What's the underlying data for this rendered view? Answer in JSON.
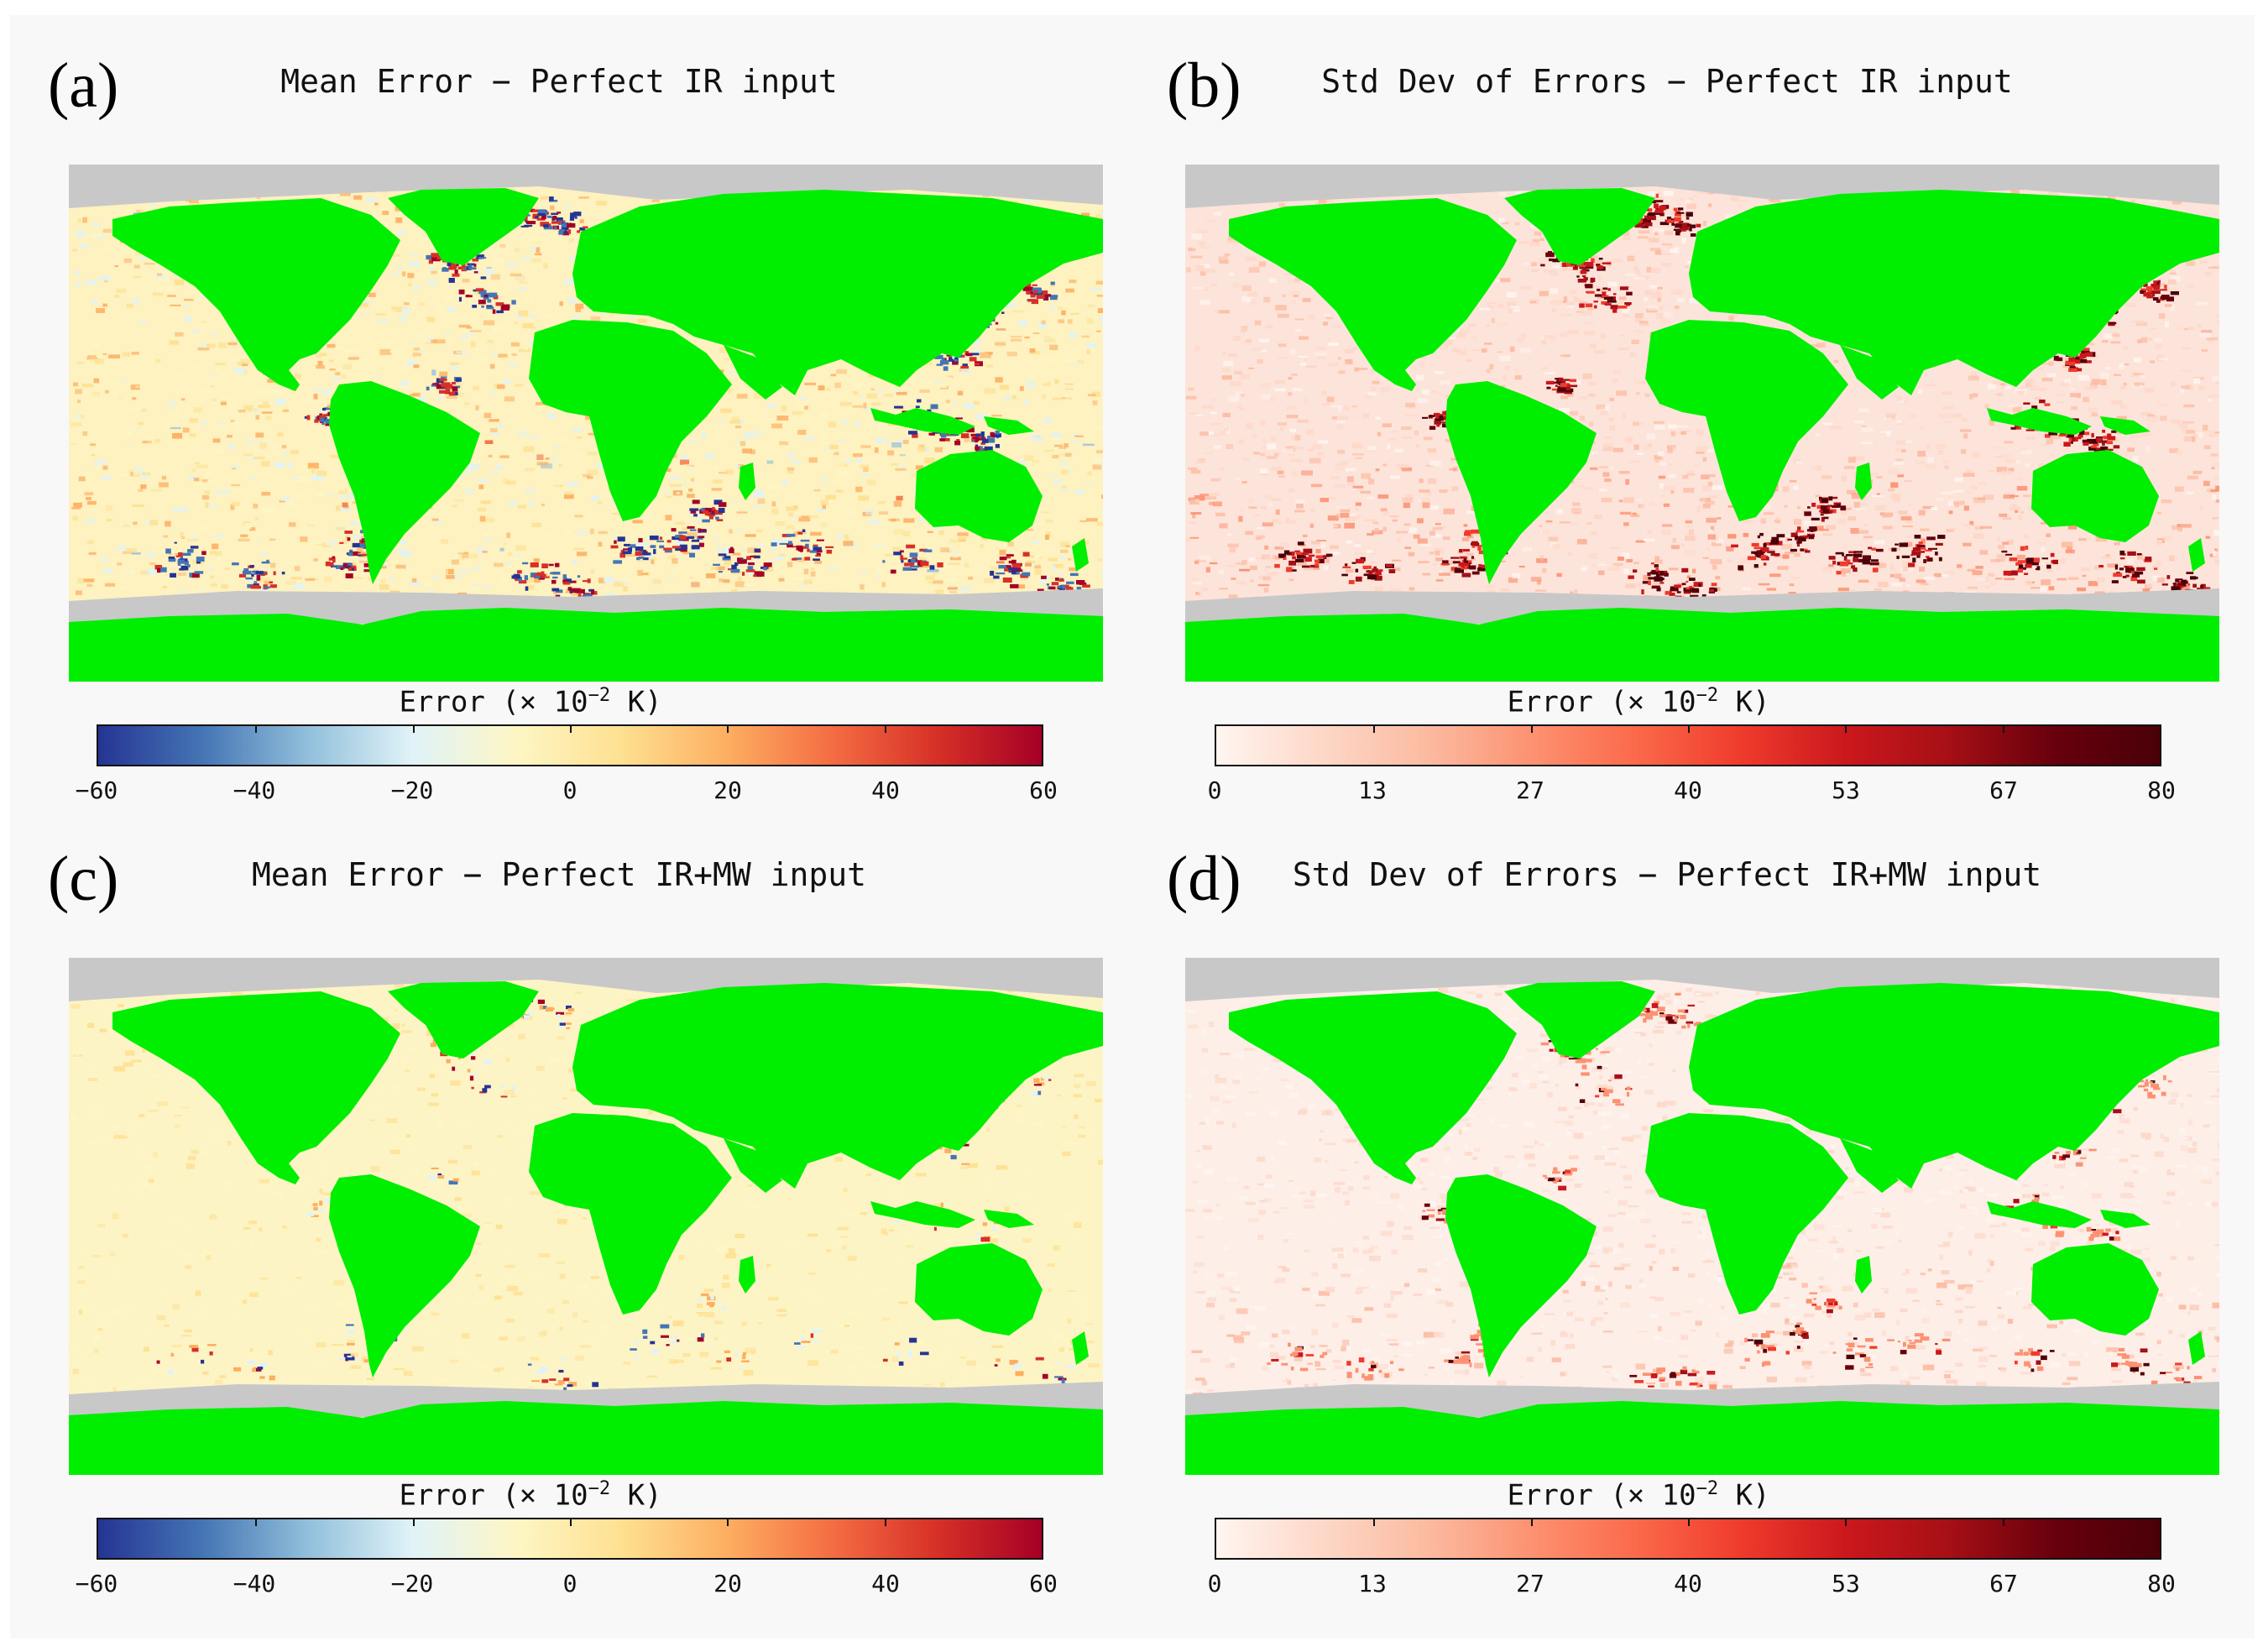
{
  "colors": {
    "land": "#00ee00",
    "ice": "#c8c8c8",
    "diverging_scale": [
      "#253494",
      "#4575b4",
      "#91bfdb",
      "#e0f3f8",
      "#fdf6c4",
      "#fee090",
      "#fdae61",
      "#f46d43",
      "#d73027",
      "#a50026"
    ],
    "sequential_scale": [
      "#fff5f0",
      "#fdd8c8",
      "#fcbba1",
      "#fc9272",
      "#fb6a4a",
      "#ef3b2c",
      "#cb181d",
      "#a50f15",
      "#67000d",
      "#4a0008"
    ]
  },
  "panels": [
    {
      "id": "a",
      "letter": "(a)",
      "title": "Mean Error − Perfect IR input",
      "colorbar_label": "Error (× 10",
      "colorbar_exponent": "−2",
      "colorbar_unit": " K)",
      "colormap": "diverging",
      "ticks": [
        "−60",
        "−40",
        "−20",
        "0",
        "20",
        "40",
        "60"
      ]
    },
    {
      "id": "b",
      "letter": "(b)",
      "title": "Std Dev of Errors − Perfect IR input",
      "colorbar_label": "Error (× 10",
      "colorbar_exponent": "−2",
      "colorbar_unit": " K)",
      "colormap": "sequential",
      "ticks": [
        "0",
        "13",
        "27",
        "40",
        "53",
        "67",
        "80"
      ]
    },
    {
      "id": "c",
      "letter": "(c)",
      "title": "Mean Error − Perfect IR+MW input",
      "colorbar_label": "Error (× 10",
      "colorbar_exponent": "−2",
      "colorbar_unit": " K)",
      "colormap": "diverging",
      "ticks": [
        "−60",
        "−40",
        "−20",
        "0",
        "20",
        "40",
        "60"
      ]
    },
    {
      "id": "d",
      "letter": "(d)",
      "title": "Std Dev of Errors − Perfect IR+MW input",
      "colorbar_label": "Error (× 10",
      "colorbar_exponent": "−2",
      "colorbar_unit": " K)",
      "colormap": "sequential",
      "ticks": [
        "0",
        "13",
        "27",
        "40",
        "53",
        "67",
        "80"
      ]
    }
  ]
}
